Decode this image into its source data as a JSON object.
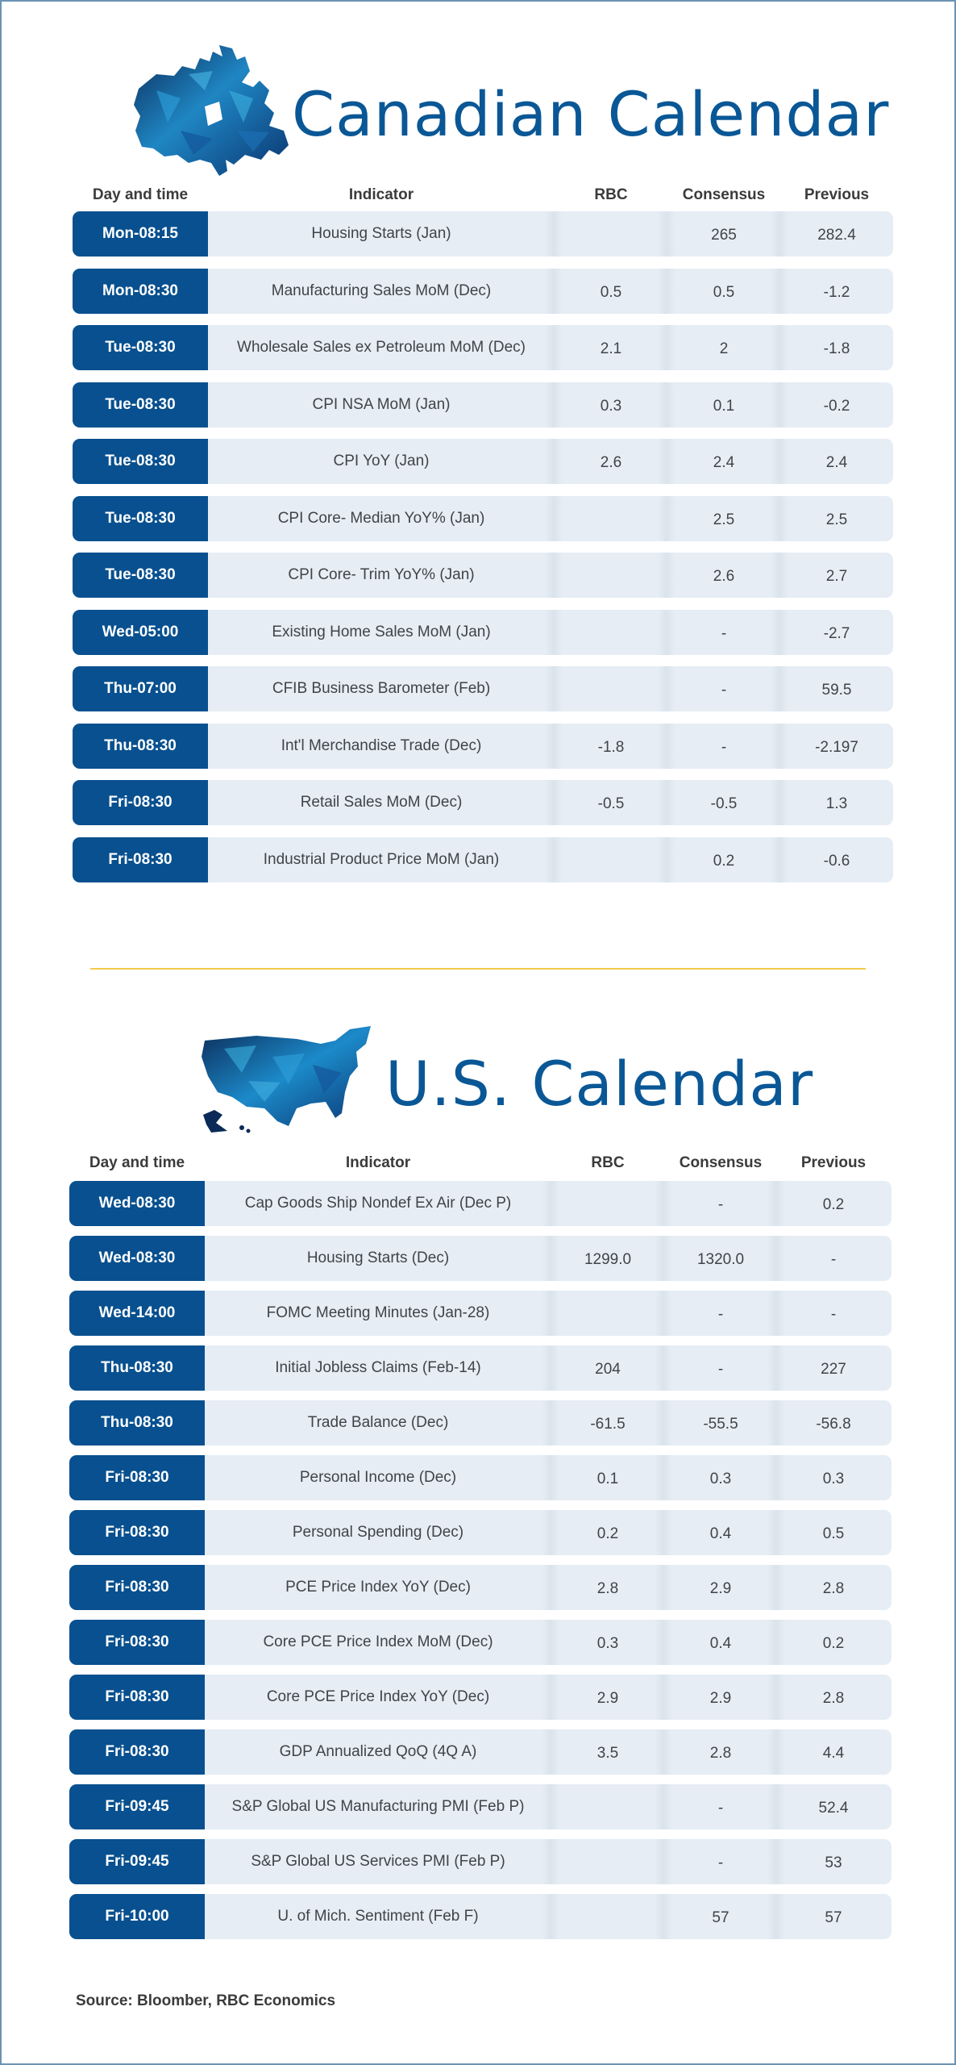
{
  "canada": {
    "title": "Canadian Calendar",
    "headers": {
      "day": "Day and time",
      "indicator": "Indicator",
      "rbc": "RBC",
      "consensus": "Consensus",
      "previous": "Previous"
    },
    "rows": [
      {
        "day": "Mon-08:15",
        "indicator": "Housing Starts (Jan)",
        "rbc": "",
        "consensus": "265",
        "previous": "282.4"
      },
      {
        "day": "Mon-08:30",
        "indicator": "Manufacturing Sales MoM (Dec)",
        "rbc": "0.5",
        "consensus": "0.5",
        "previous": "-1.2"
      },
      {
        "day": "Tue-08:30",
        "indicator": "Wholesale Sales ex Petroleum MoM (Dec)",
        "rbc": "2.1",
        "consensus": "2",
        "previous": "-1.8"
      },
      {
        "day": "Tue-08:30",
        "indicator": "CPI NSA MoM (Jan)",
        "rbc": "0.3",
        "consensus": "0.1",
        "previous": "-0.2"
      },
      {
        "day": "Tue-08:30",
        "indicator": "CPI YoY (Jan)",
        "rbc": "2.6",
        "consensus": "2.4",
        "previous": "2.4"
      },
      {
        "day": "Tue-08:30",
        "indicator": "CPI Core- Median YoY% (Jan)",
        "rbc": "",
        "consensus": "2.5",
        "previous": "2.5"
      },
      {
        "day": "Tue-08:30",
        "indicator": "CPI Core- Trim YoY% (Jan)",
        "rbc": "",
        "consensus": "2.6",
        "previous": "2.7"
      },
      {
        "day": "Wed-05:00",
        "indicator": "Existing Home Sales MoM (Jan)",
        "rbc": "",
        "consensus": "-",
        "previous": "-2.7"
      },
      {
        "day": "Thu-07:00",
        "indicator": "CFIB Business Barometer (Feb)",
        "rbc": "",
        "consensus": "-",
        "previous": "59.5"
      },
      {
        "day": "Thu-08:30",
        "indicator": "Int'l Merchandise Trade (Dec)",
        "rbc": "-1.8",
        "consensus": "-",
        "previous": "-2.197"
      },
      {
        "day": "Fri-08:30",
        "indicator": "Retail Sales MoM (Dec)",
        "rbc": "-0.5",
        "consensus": "-0.5",
        "previous": "1.3"
      },
      {
        "day": "Fri-08:30",
        "indicator": "Industrial Product Price MoM (Jan)",
        "rbc": "",
        "consensus": "0.2",
        "previous": "-0.6"
      }
    ]
  },
  "us": {
    "title": "U.S. Calendar",
    "headers": {
      "day": "Day and time",
      "indicator": "Indicator",
      "rbc": "RBC",
      "consensus": "Consensus",
      "previous": "Previous"
    },
    "rows": [
      {
        "day": "Wed-08:30",
        "indicator": "Cap Goods Ship Nondef Ex Air (Dec P)",
        "rbc": "",
        "consensus": "-",
        "previous": "0.2"
      },
      {
        "day": "Wed-08:30",
        "indicator": "Housing Starts (Dec)",
        "rbc": "1299.0",
        "consensus": "1320.0",
        "previous": "-"
      },
      {
        "day": "Wed-14:00",
        "indicator": "FOMC Meeting Minutes (Jan-28)",
        "rbc": "",
        "consensus": "-",
        "previous": "-"
      },
      {
        "day": "Thu-08:30",
        "indicator": "Initial Jobless Claims (Feb-14)",
        "rbc": "204",
        "consensus": "-",
        "previous": "227"
      },
      {
        "day": "Thu-08:30",
        "indicator": "Trade Balance (Dec)",
        "rbc": "-61.5",
        "consensus": "-55.5",
        "previous": "-56.8"
      },
      {
        "day": "Fri-08:30",
        "indicator": "Personal Income (Dec)",
        "rbc": "0.1",
        "consensus": "0.3",
        "previous": "0.3"
      },
      {
        "day": "Fri-08:30",
        "indicator": "Personal Spending (Dec)",
        "rbc": "0.2",
        "consensus": "0.4",
        "previous": "0.5"
      },
      {
        "day": "Fri-08:30",
        "indicator": "PCE Price Index YoY (Dec)",
        "rbc": "2.8",
        "consensus": "2.9",
        "previous": "2.8"
      },
      {
        "day": "Fri-08:30",
        "indicator": "Core PCE Price Index MoM (Dec)",
        "rbc": "0.3",
        "consensus": "0.4",
        "previous": "0.2"
      },
      {
        "day": "Fri-08:30",
        "indicator": "Core PCE Price Index YoY (Dec)",
        "rbc": "2.9",
        "consensus": "2.9",
        "previous": "2.8"
      },
      {
        "day": "Fri-08:30",
        "indicator": "GDP Annualized QoQ (4Q A)",
        "rbc": "3.5",
        "consensus": "2.8",
        "previous": "4.4"
      },
      {
        "day": "Fri-09:45",
        "indicator": "S&P Global US Manufacturing PMI (Feb P)",
        "rbc": "",
        "consensus": "-",
        "previous": "52.4"
      },
      {
        "day": "Fri-09:45",
        "indicator": "S&P Global US Services PMI (Feb P)",
        "rbc": "",
        "consensus": "-",
        "previous": "53"
      },
      {
        "day": "Fri-10:00",
        "indicator": "U. of Mich. Sentiment (Feb F)",
        "rbc": "",
        "consensus": "57",
        "previous": "57"
      }
    ]
  },
  "source": "Source: Bloomber, RBC Economics",
  "colors": {
    "brand_blue": "#0a5796",
    "row_bg": "#e6edf5",
    "divider": "#f2c94c"
  }
}
